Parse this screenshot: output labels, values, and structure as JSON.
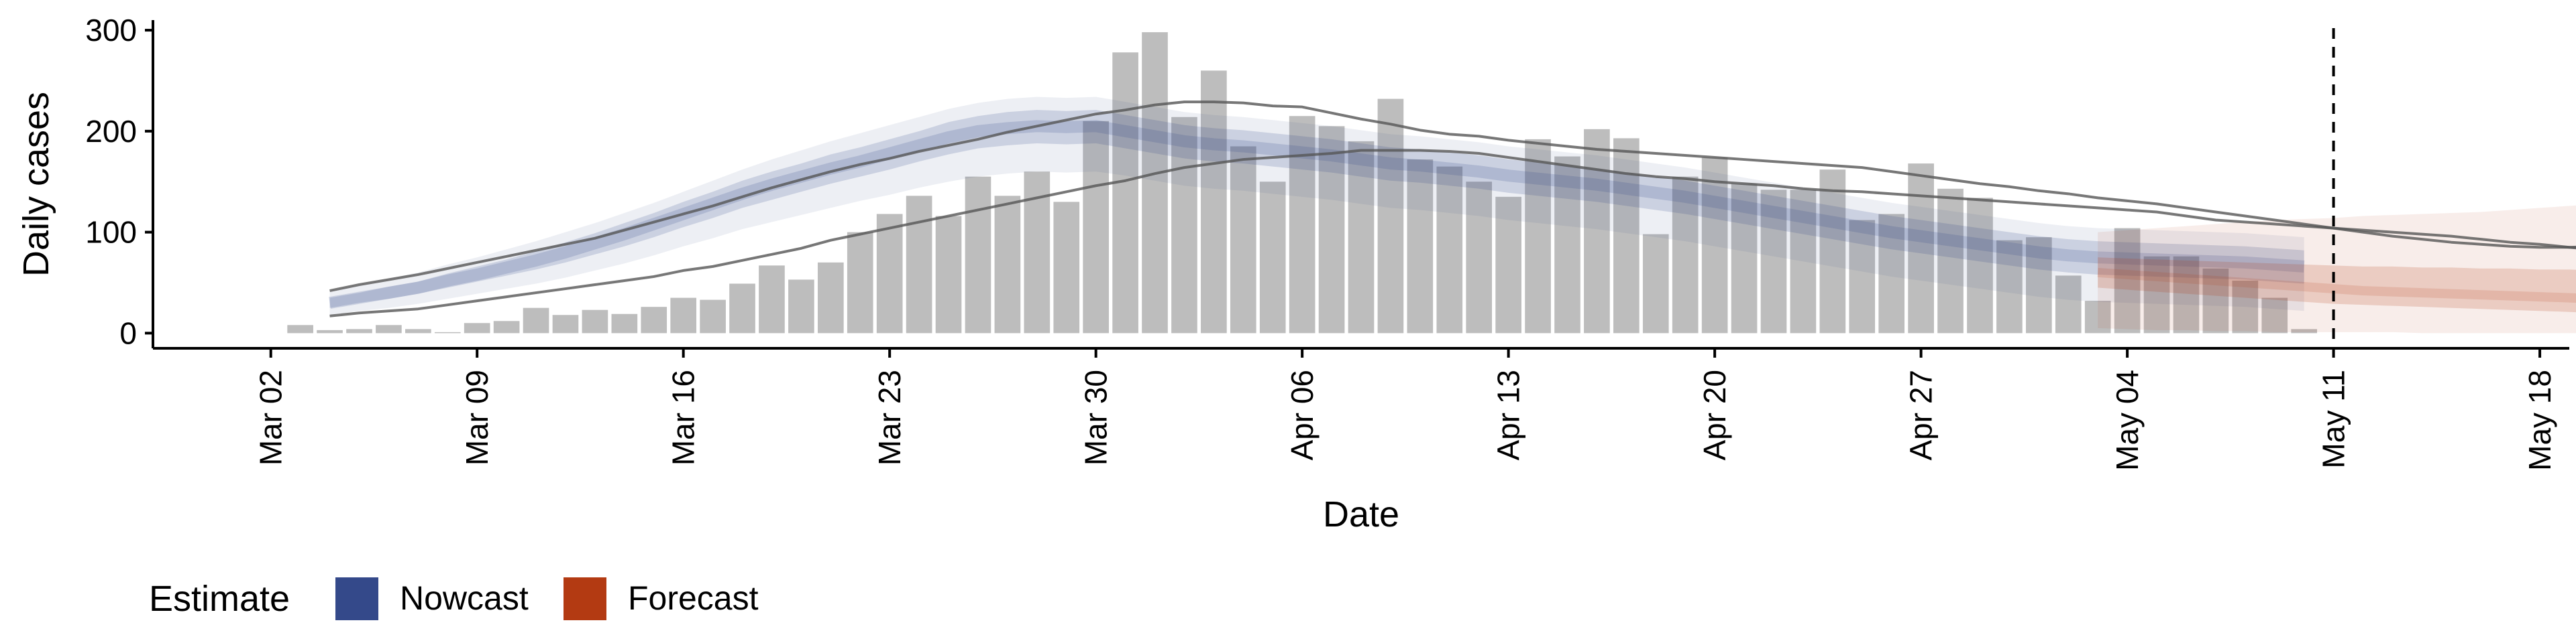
{
  "chart_data": {
    "type": "bar",
    "xlabel": "Date",
    "ylabel": "Daily cases",
    "x_ticks": [
      "Mar 02",
      "Mar 09",
      "Mar 16",
      "Mar 23",
      "Mar 30",
      "Apr 06",
      "Apr 13",
      "Apr 20",
      "Apr 27",
      "May 04",
      "May 11",
      "May 18"
    ],
    "x_range": [
      "2020-02-27",
      "2020-05-19"
    ],
    "y_ticks": [
      0,
      100,
      200,
      300
    ],
    "ylim": [
      -15,
      310
    ],
    "grid": false,
    "reference_line": {
      "date": "2020-05-11",
      "style": "dashed"
    },
    "legend": {
      "title": "Estimate",
      "position": "bottom-left",
      "items": [
        {
          "label": "Nowcast",
          "color": "#34498a"
        },
        {
          "label": "Forecast",
          "color": "#b33a12"
        }
      ]
    },
    "observed_cases": {
      "start_date": "2020-03-03",
      "values": [
        8,
        3,
        4,
        8,
        4,
        1,
        10,
        12,
        25,
        18,
        23,
        19,
        26,
        35,
        33,
        49,
        67,
        53,
        70,
        100,
        118,
        136,
        116,
        155,
        136,
        160,
        130,
        210,
        278,
        298,
        214,
        260,
        185,
        150,
        215,
        205,
        190,
        232,
        172,
        165,
        150,
        135,
        192,
        175,
        202,
        193,
        98,
        155,
        174,
        148,
        142,
        142,
        162,
        112,
        118,
        168,
        143,
        134,
        92,
        95,
        57,
        32,
        104,
        76,
        76,
        64,
        52,
        35,
        4
      ]
    },
    "nowcast": {
      "start_date": "2020-03-04",
      "median": [
        30,
        35,
        40,
        45,
        52,
        58,
        65,
        72,
        80,
        89,
        98,
        108,
        118,
        128,
        138,
        147,
        155,
        163,
        170,
        178,
        186,
        194,
        200,
        203,
        205,
        204,
        205,
        200,
        195,
        190,
        187,
        185,
        182,
        179,
        176,
        172,
        168,
        166,
        163,
        160,
        156,
        153,
        150,
        147,
        143,
        139,
        135,
        130,
        125,
        120,
        115,
        110,
        105,
        100,
        96,
        92,
        88,
        84,
        80,
        77,
        75,
        74,
        73,
        72,
        71,
        70,
        68,
        66
      ],
      "inner_band": [
        [
          25,
          35
        ],
        [
          30,
          40
        ],
        [
          34,
          46
        ],
        [
          39,
          51
        ],
        [
          45,
          59
        ],
        [
          51,
          66
        ],
        [
          57,
          73
        ],
        [
          63,
          81
        ],
        [
          70,
          90
        ],
        [
          78,
          99
        ],
        [
          86,
          109
        ],
        [
          95,
          119
        ],
        [
          105,
          130
        ],
        [
          114,
          140
        ],
        [
          124,
          151
        ],
        [
          132,
          160
        ],
        [
          140,
          168
        ],
        [
          148,
          177
        ],
        [
          155,
          184
        ],
        [
          162,
          192
        ],
        [
          170,
          200
        ],
        [
          177,
          209
        ],
        [
          183,
          215
        ],
        [
          186,
          219
        ],
        [
          188,
          221
        ],
        [
          187,
          220
        ],
        [
          188,
          221
        ],
        [
          183,
          216
        ],
        [
          178,
          211
        ],
        [
          173,
          206
        ],
        [
          170,
          203
        ],
        [
          168,
          201
        ],
        [
          165,
          198
        ],
        [
          162,
          195
        ],
        [
          159,
          192
        ],
        [
          155,
          188
        ],
        [
          151,
          184
        ],
        [
          149,
          182
        ],
        [
          146,
          179
        ],
        [
          143,
          176
        ],
        [
          139,
          172
        ],
        [
          136,
          169
        ],
        [
          133,
          166
        ],
        [
          130,
          163
        ],
        [
          126,
          159
        ],
        [
          122,
          155
        ],
        [
          118,
          151
        ],
        [
          113,
          146
        ],
        [
          108,
          141
        ],
        [
          103,
          136
        ],
        [
          98,
          131
        ],
        [
          93,
          126
        ],
        [
          88,
          121
        ],
        [
          83,
          116
        ],
        [
          79,
          112
        ],
        [
          75,
          108
        ],
        [
          71,
          104
        ],
        [
          67,
          100
        ],
        [
          63,
          96
        ],
        [
          60,
          93
        ],
        [
          58,
          91
        ],
        [
          57,
          90
        ],
        [
          56,
          89
        ],
        [
          55,
          88
        ],
        [
          54,
          87
        ],
        [
          53,
          86
        ],
        [
          51,
          84
        ],
        [
          49,
          82
        ]
      ],
      "outer_band": [
        [
          18,
          42
        ],
        [
          22,
          48
        ],
        [
          25,
          54
        ],
        [
          29,
          60
        ],
        [
          34,
          68
        ],
        [
          39,
          75
        ],
        [
          44,
          83
        ],
        [
          49,
          91
        ],
        [
          55,
          100
        ],
        [
          62,
          109
        ],
        [
          69,
          119
        ],
        [
          77,
          129
        ],
        [
          86,
          140
        ],
        [
          94,
          151
        ],
        [
          103,
          162
        ],
        [
          110,
          172
        ],
        [
          117,
          181
        ],
        [
          124,
          190
        ],
        [
          131,
          198
        ],
        [
          137,
          206
        ],
        [
          144,
          214
        ],
        [
          150,
          222
        ],
        [
          155,
          228
        ],
        [
          158,
          232
        ],
        [
          160,
          234
        ],
        [
          159,
          233
        ],
        [
          160,
          234
        ],
        [
          156,
          229
        ],
        [
          151,
          224
        ],
        [
          146,
          219
        ],
        [
          143,
          216
        ],
        [
          141,
          214
        ],
        [
          138,
          211
        ],
        [
          135,
          208
        ],
        [
          132,
          205
        ],
        [
          128,
          201
        ],
        [
          124,
          197
        ],
        [
          122,
          195
        ],
        [
          119,
          192
        ],
        [
          116,
          189
        ],
        [
          112,
          185
        ],
        [
          109,
          182
        ],
        [
          106,
          179
        ],
        [
          103,
          176
        ],
        [
          99,
          172
        ],
        [
          95,
          168
        ],
        [
          91,
          164
        ],
        [
          86,
          159
        ],
        [
          81,
          154
        ],
        [
          76,
          149
        ],
        [
          71,
          144
        ],
        [
          66,
          139
        ],
        [
          61,
          134
        ],
        [
          56,
          129
        ],
        [
          52,
          125
        ],
        [
          48,
          121
        ],
        [
          44,
          117
        ],
        [
          40,
          113
        ],
        [
          36,
          109
        ],
        [
          33,
          106
        ],
        [
          31,
          104
        ],
        [
          30,
          103
        ],
        [
          29,
          102
        ],
        [
          28,
          101
        ],
        [
          27,
          100
        ],
        [
          26,
          99
        ],
        [
          24,
          97
        ],
        [
          22,
          95
        ]
      ],
      "upper_line": [
        42,
        48,
        53,
        58,
        64,
        70,
        76,
        82,
        88,
        94,
        102,
        110,
        118,
        126,
        135,
        144,
        152,
        160,
        167,
        173,
        180,
        186,
        192,
        199,
        205,
        211,
        217,
        221,
        226,
        229,
        229,
        228,
        225,
        224,
        218,
        212,
        207,
        201,
        197,
        195,
        191,
        188,
        185,
        182,
        180,
        178,
        176,
        174,
        172,
        170,
        168,
        166,
        164,
        160,
        156,
        152,
        148,
        145,
        141,
        138,
        134,
        131,
        128,
        124,
        120,
        116,
        112,
        108,
        104,
        100,
        96,
        93,
        90,
        88,
        86,
        85,
        85,
        86,
        87,
        88,
        90,
        95,
        101,
        106
      ],
      "lower_line": [
        17,
        20,
        22,
        24,
        28,
        32,
        36,
        40,
        44,
        48,
        52,
        56,
        62,
        66,
        72,
        78,
        84,
        92,
        98,
        104,
        110,
        116,
        122,
        128,
        134,
        140,
        146,
        151,
        158,
        164,
        168,
        172,
        174,
        176,
        178,
        181,
        181,
        181,
        180,
        178,
        174,
        170,
        166,
        162,
        158,
        155,
        153,
        150,
        148,
        146,
        143,
        141,
        140,
        138,
        136,
        134,
        132,
        130,
        128,
        126,
        124,
        122,
        120,
        116,
        112,
        110,
        108,
        106,
        104,
        102,
        100,
        98,
        96,
        93,
        90,
        88,
        85,
        82,
        79,
        76,
        72,
        68,
        64,
        60
      ]
    },
    "forecast": {
      "start_date": "2020-05-03",
      "median": [
        60,
        58,
        56,
        54,
        52,
        50,
        48,
        46,
        44,
        42,
        41,
        40,
        39,
        38,
        37,
        36,
        35,
        34,
        33
      ],
      "inner_band": [
        [
          45,
          75
        ],
        [
          43,
          74
        ],
        [
          41,
          73
        ],
        [
          39,
          72
        ],
        [
          37,
          71
        ],
        [
          35,
          70
        ],
        [
          33,
          69
        ],
        [
          31,
          68
        ],
        [
          29,
          67
        ],
        [
          28,
          66
        ],
        [
          27,
          66
        ],
        [
          26,
          65
        ],
        [
          25,
          65
        ],
        [
          24,
          64
        ],
        [
          23,
          64
        ],
        [
          22,
          63
        ],
        [
          21,
          63
        ],
        [
          20,
          62
        ],
        [
          19,
          62
        ]
      ],
      "outer_band": [
        [
          5,
          100
        ],
        [
          4,
          102
        ],
        [
          3,
          104
        ],
        [
          3,
          106
        ],
        [
          2,
          108
        ],
        [
          2,
          110
        ],
        [
          1,
          112
        ],
        [
          1,
          113
        ],
        [
          1,
          114
        ],
        [
          1,
          116
        ],
        [
          1,
          117
        ],
        [
          0,
          118
        ],
        [
          0,
          119
        ],
        [
          0,
          120
        ],
        [
          0,
          122
        ],
        [
          0,
          124
        ],
        [
          0,
          126
        ],
        [
          0,
          128
        ],
        [
          0,
          130
        ]
      ]
    }
  }
}
